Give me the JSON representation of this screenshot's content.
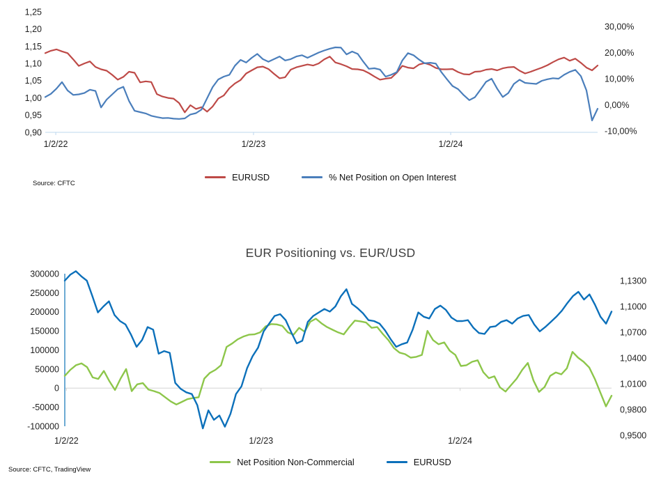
{
  "chart_data": [
    {
      "type": "line",
      "title": "",
      "source": "Source: CFTC",
      "grid": "off",
      "legend_position": "bottom-center",
      "x_ticks": [
        {
          "label": "1/2/22",
          "f": 0.019
        },
        {
          "label": "1/2/23",
          "f": 0.377
        },
        {
          "label": "1/2/24",
          "f": 0.734
        }
      ],
      "axes": {
        "left": {
          "min": 0.9,
          "max": 1.25,
          "tick_labels": [
            "1,25",
            "1,20",
            "1,15",
            "1,10",
            "1,05",
            "1,00",
            "0,95",
            "0,90"
          ]
        },
        "right": {
          "min": -10,
          "max": 30,
          "tick_labels": [
            "30,00%",
            "20,00%",
            "10,00%",
            "0,00%",
            "-10,00%"
          ]
        }
      },
      "series": [
        {
          "name": "EURUSD",
          "axis": "left",
          "color": "#be4a47",
          "values": [
            1.13,
            1.137,
            1.141,
            1.135,
            1.13,
            1.112,
            1.093,
            1.1,
            1.106,
            1.09,
            1.083,
            1.079,
            1.067,
            1.053,
            1.061,
            1.076,
            1.073,
            1.045,
            1.048,
            1.046,
            1.011,
            1.004,
            1.0,
            0.998,
            0.985,
            0.958,
            0.979,
            0.968,
            0.973,
            0.96,
            0.975,
            0.998,
            1.007,
            1.028,
            1.042,
            1.052,
            1.071,
            1.08,
            1.089,
            1.091,
            1.084,
            1.07,
            1.057,
            1.06,
            1.082,
            1.089,
            1.093,
            1.097,
            1.094,
            1.1,
            1.112,
            1.12,
            1.103,
            1.098,
            1.092,
            1.084,
            1.083,
            1.08,
            1.072,
            1.062,
            1.053,
            1.056,
            1.058,
            1.073,
            1.093,
            1.088,
            1.086,
            1.097,
            1.101,
            1.096,
            1.087,
            1.083,
            1.083,
            1.084,
            1.075,
            1.069,
            1.068,
            1.076,
            1.077,
            1.082,
            1.084,
            1.08,
            1.086,
            1.089,
            1.09,
            1.079,
            1.071,
            1.076,
            1.082,
            1.088,
            1.095,
            1.104,
            1.112,
            1.117,
            1.108,
            1.114,
            1.102,
            1.088,
            1.08,
            1.094
          ]
        },
        {
          "name": "% Net Position on Open Interest",
          "axis": "right",
          "color": "#4a7ebb",
          "values": [
            3.0,
            4.2,
            6.2,
            8.7,
            5.5,
            3.8,
            4.0,
            4.5,
            5.8,
            5.3,
            -1.0,
            2.0,
            4.0,
            6.0,
            6.9,
            1.5,
            -2.3,
            -2.8,
            -3.3,
            -4.2,
            -4.7,
            -5.1,
            -5.0,
            -5.3,
            -5.4,
            -5.2,
            -3.7,
            -3.2,
            -1.8,
            2.5,
            6.8,
            9.7,
            10.8,
            11.5,
            15.0,
            17.2,
            16.2,
            18.0,
            19.5,
            17.5,
            16.5,
            17.5,
            18.5,
            17.0,
            17.5,
            18.5,
            19.0,
            18.0,
            19.0,
            20.0,
            20.8,
            21.5,
            22.0,
            21.9,
            19.3,
            20.4,
            19.5,
            16.5,
            13.8,
            14.0,
            13.5,
            10.8,
            11.5,
            12.5,
            17.0,
            19.8,
            19.0,
            17.3,
            15.9,
            16.1,
            15.8,
            12.5,
            9.8,
            7.2,
            6.0,
            3.7,
            1.8,
            2.9,
            5.8,
            8.8,
            10.0,
            6.2,
            3.0,
            4.5,
            8.0,
            9.6,
            8.4,
            8.2,
            8.0,
            9.2,
            9.8,
            10.2,
            10.0,
            11.5,
            12.6,
            13.4,
            11.0,
            5.5,
            -6.0,
            -1.5
          ]
        }
      ]
    },
    {
      "type": "line",
      "title": "EUR Positioning vs. EUR/USD",
      "source": "Source: CFTC, TradingView",
      "grid": "zero-line-only",
      "legend_position": "bottom-center",
      "x_ticks": [
        {
          "label": "1/2/22",
          "f": 0.003
        },
        {
          "label": "1/2/23",
          "f": 0.359
        },
        {
          "label": "1/2/24",
          "f": 0.723
        }
      ],
      "axes": {
        "left": {
          "min": -100000,
          "max": 300000,
          "tick_labels": [
            "300000",
            "250000",
            "200000",
            "150000",
            "100000",
            "50000",
            "0",
            "-50000",
            "-100000"
          ]
        },
        "right": {
          "min": 0.95,
          "max": 1.13,
          "tick_labels": [
            "1,1300",
            "1,1000",
            "1,0700",
            "1,0400",
            "1,0100",
            "0,9800",
            "0,9500"
          ]
        }
      },
      "series": [
        {
          "name": "Net Position Non-Commercial",
          "axis": "left",
          "color": "#8dc64a",
          "values": [
            32000,
            48000,
            60000,
            65000,
            55000,
            28000,
            24000,
            45000,
            18000,
            -5000,
            25000,
            50000,
            -8000,
            10000,
            13000,
            -4000,
            -8000,
            -13000,
            -24000,
            -35000,
            -43000,
            -36000,
            -29000,
            -26000,
            -24000,
            25000,
            40000,
            48000,
            60000,
            108000,
            117000,
            128000,
            135000,
            140000,
            141000,
            146000,
            162000,
            168000,
            167000,
            163000,
            146000,
            140000,
            158000,
            148000,
            174000,
            182000,
            170000,
            160000,
            153000,
            146000,
            141000,
            160000,
            177000,
            175000,
            172000,
            158000,
            160000,
            142000,
            126000,
            105000,
            93000,
            89000,
            80000,
            82000,
            87000,
            150000,
            126000,
            115000,
            120000,
            98000,
            87000,
            58000,
            60000,
            69000,
            73000,
            42000,
            26000,
            31000,
            2000,
            -9000,
            8000,
            25000,
            48000,
            66000,
            20000,
            -10000,
            3000,
            32000,
            41000,
            36000,
            52000,
            95000,
            80000,
            69000,
            54000,
            24000,
            -12000,
            -48000,
            -20000
          ]
        },
        {
          "name": "EURUSD",
          "axis": "right",
          "color": "#0c70ba",
          "values": [
            1.13,
            1.137,
            1.141,
            1.135,
            1.13,
            1.112,
            1.093,
            1.1,
            1.106,
            1.09,
            1.083,
            1.079,
            1.067,
            1.053,
            1.061,
            1.076,
            1.073,
            1.045,
            1.048,
            1.046,
            1.011,
            1.004,
            1.0,
            0.998,
            0.985,
            0.958,
            0.979,
            0.968,
            0.973,
            0.96,
            0.975,
            0.998,
            1.007,
            1.028,
            1.042,
            1.052,
            1.071,
            1.08,
            1.089,
            1.091,
            1.084,
            1.07,
            1.057,
            1.06,
            1.082,
            1.089,
            1.093,
            1.097,
            1.094,
            1.1,
            1.112,
            1.12,
            1.103,
            1.098,
            1.092,
            1.084,
            1.083,
            1.08,
            1.072,
            1.062,
            1.053,
            1.056,
            1.058,
            1.073,
            1.093,
            1.088,
            1.086,
            1.097,
            1.101,
            1.096,
            1.087,
            1.083,
            1.083,
            1.084,
            1.075,
            1.069,
            1.068,
            1.076,
            1.077,
            1.082,
            1.084,
            1.08,
            1.086,
            1.089,
            1.09,
            1.079,
            1.071,
            1.076,
            1.082,
            1.088,
            1.095,
            1.104,
            1.112,
            1.117,
            1.108,
            1.114,
            1.102,
            1.088,
            1.08,
            1.094
          ]
        }
      ]
    }
  ],
  "decoration": {
    "top_baseline_color": "#bdd7ee",
    "zero_line_color": "#d2d2d2",
    "vertical_axis_line_color": "#2e86c0"
  }
}
